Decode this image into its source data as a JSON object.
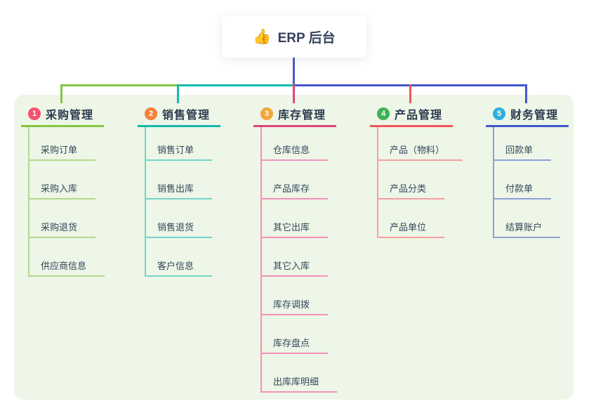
{
  "root": {
    "icon": "👍",
    "label": "ERP 后台"
  },
  "colors": {
    "canvas_bg": "#ffffff",
    "panel_bg": "#edf6e7",
    "root_stem": "#4b59c8",
    "card_bg": "#ffffff",
    "title_text": "#2c3a4f",
    "child_text": "#33475c"
  },
  "branches": [
    {
      "badge": "1",
      "title": "采购管理",
      "badge_color": "#f4526e",
      "main_color": "#85c542",
      "light_color": "#b3d98b",
      "children": [
        "采购订单",
        "采购入库",
        "采购退货",
        "供应商信息"
      ]
    },
    {
      "badge": "2",
      "title": "销售管理",
      "badge_color": "#f5813a",
      "main_color": "#14b9ac",
      "light_color": "#74d5c9",
      "children": [
        "销售订单",
        "销售出库",
        "销售退货",
        "客户信息"
      ]
    },
    {
      "badge": "3",
      "title": "库存管理",
      "badge_color": "#f2a63a",
      "main_color": "#e0457b",
      "light_color": "#f291bb",
      "children": [
        "仓库信息",
        "产品库存",
        "其它出库",
        "其它入库",
        "库存调拨",
        "库存盘点",
        "出库库明细"
      ]
    },
    {
      "badge": "4",
      "title": "产品管理",
      "badge_color": "#3cb454",
      "main_color": "#f0545c",
      "light_color": "#f5a0a0",
      "children": [
        "产品（物料）",
        "产品分类",
        "产品单位"
      ]
    },
    {
      "badge": "5",
      "title": "财务管理",
      "badge_color": "#2caee0",
      "main_color": "#4357c9",
      "light_color": "#8ba0d8",
      "children": [
        "回款单",
        "付款单",
        "结算账户"
      ]
    }
  ]
}
